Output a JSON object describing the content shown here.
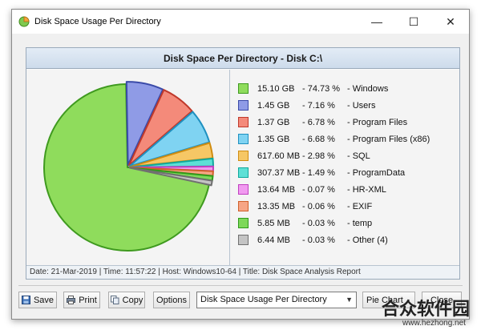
{
  "window": {
    "title": "Disk Space Usage Per Directory",
    "controls": {
      "minimize": "—",
      "maximize": "☐",
      "close": "✕"
    }
  },
  "report": {
    "header": "Disk Space Per Directory - Disk C:\\",
    "footer": "Date: 21-Mar-2019 | Time: 11:57:22 | Host: Windows10-64 | Title: Disk Space Analysis Report"
  },
  "legend": [
    {
      "size": "15.10 GB",
      "percent": "- 74.73 %",
      "name": "- Windows"
    },
    {
      "size": "1.45 GB",
      "percent": "- 7.16 %",
      "name": "- Users"
    },
    {
      "size": "1.37 GB",
      "percent": "- 6.78 %",
      "name": "- Program Files"
    },
    {
      "size": "1.35 GB",
      "percent": "- 6.68 %",
      "name": "- Program Files (x86)"
    },
    {
      "size": "617.60 MB",
      "percent": "- 2.98 %",
      "name": "- SQL"
    },
    {
      "size": "307.37 MB",
      "percent": "- 1.49 %",
      "name": "- ProgramData"
    },
    {
      "size": "13.64 MB",
      "percent": "- 0.07 %",
      "name": "- HR-XML"
    },
    {
      "size": "13.35 MB",
      "percent": "- 0.06 %",
      "name": "- EXIF"
    },
    {
      "size": "5.85 MB",
      "percent": "- 0.03 %",
      "name": "- temp"
    },
    {
      "size": "6.44 MB",
      "percent": "- 0.03 %",
      "name": "- Other (4)"
    }
  ],
  "chart_data": {
    "type": "pie",
    "title": "Disk Space Per Directory - Disk C:\\",
    "slices": [
      {
        "label": "Windows",
        "value": 74.73,
        "color": "#8fdc5c",
        "stroke": "#3f9a1f"
      },
      {
        "label": "Users",
        "value": 7.16,
        "color": "#8f9be6",
        "stroke": "#3a4aa8"
      },
      {
        "label": "Program Files",
        "value": 6.78,
        "color": "#f48a7a",
        "stroke": "#c0392b"
      },
      {
        "label": "Program Files (x86)",
        "value": 6.68,
        "color": "#7fd3f2",
        "stroke": "#1f90c0"
      },
      {
        "label": "SQL",
        "value": 2.98,
        "color": "#f6c765",
        "stroke": "#d08c10"
      },
      {
        "label": "ProgramData",
        "value": 1.49,
        "color": "#5ee0d6",
        "stroke": "#10a89c"
      },
      {
        "label": "HR-XML",
        "value": 0.07,
        "color": "#f19af0",
        "stroke": "#c040c0"
      },
      {
        "label": "EXIF",
        "value": 0.06,
        "color": "#f6a585",
        "stroke": "#d0602a"
      },
      {
        "label": "temp",
        "value": 0.03,
        "color": "#7ed85a",
        "stroke": "#2f9a1a"
      },
      {
        "label": "Other (4)",
        "value": 0.03,
        "color": "#c4c4c4",
        "stroke": "#707070"
      }
    ]
  },
  "toolbar": {
    "save_label": "Save",
    "print_label": "Print",
    "copy_label": "Copy",
    "options_label": "Options",
    "report_select_value": "Disk Space Usage Per Directory",
    "piechart_label": "Pie Chart",
    "close_label": "Close"
  },
  "watermark": {
    "text": "合众软件园",
    "url": "www.hezhong.net"
  }
}
